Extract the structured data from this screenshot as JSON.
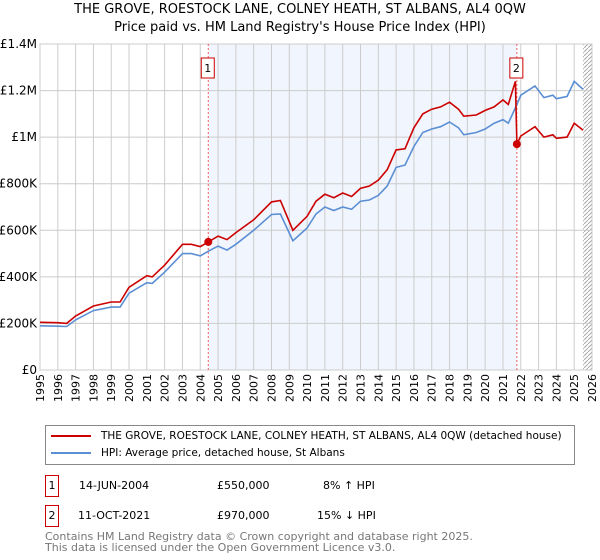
{
  "title": "THE GROVE, ROESTOCK LANE, COLNEY HEATH, ST ALBANS, AL4 0QW",
  "subtitle": "Price paid vs. HM Land Registry's House Price Index (HPI)",
  "chart_data": {
    "type": "line",
    "xlim": [
      1995,
      2026
    ],
    "ylim": [
      0,
      1400000
    ],
    "yticks": [
      {
        "v": 0,
        "label": "£0"
      },
      {
        "v": 200000,
        "label": "£200K"
      },
      {
        "v": 400000,
        "label": "£400K"
      },
      {
        "v": 600000,
        "label": "£600K"
      },
      {
        "v": 800000,
        "label": "£800K"
      },
      {
        "v": 1000000,
        "label": "£1M"
      },
      {
        "v": 1200000,
        "label": "£1.2M"
      },
      {
        "v": 1400000,
        "label": "£1.4M"
      }
    ],
    "xticks": [
      "1995",
      "1996",
      "1997",
      "1998",
      "1999",
      "2000",
      "2001",
      "2002",
      "2003",
      "2004",
      "2005",
      "2006",
      "2007",
      "2008",
      "2009",
      "2010",
      "2011",
      "2012",
      "2013",
      "2014",
      "2015",
      "2016",
      "2017",
      "2018",
      "2019",
      "2020",
      "2021",
      "2022",
      "2023",
      "2024",
      "2025",
      "2026"
    ],
    "shaded_range": [
      2004.45,
      2021.78
    ],
    "hatched_from": 2025.5,
    "series": [
      {
        "name": "THE GROVE, ROESTOCK LANE, COLNEY HEATH, ST ALBANS, AL4 0QW (detached house)",
        "color": "#cc0000",
        "x": [
          1995,
          1996,
          1996.5,
          1997,
          1998,
          1999,
          1999.5,
          2000,
          2001,
          2001.3,
          2002,
          2003,
          2003.5,
          2004,
          2004.45,
          2005,
          2005.5,
          2006,
          2007,
          2008,
          2008.5,
          2009.2,
          2010,
          2010.5,
          2011,
          2011.5,
          2012,
          2012.5,
          2013,
          2013.5,
          2014,
          2014.5,
          2015,
          2015.5,
          2016,
          2016.5,
          2017,
          2017.5,
          2018,
          2018.5,
          2018.8,
          2019.5,
          2020,
          2020.5,
          2021,
          2021.3,
          2021.7,
          2021.78,
          2022,
          2022.8,
          2023.3,
          2023.8,
          2024,
          2024.6,
          2025,
          2025.5
        ],
        "y": [
          205000,
          203000,
          200000,
          232000,
          275000,
          292000,
          292000,
          355000,
          405000,
          400000,
          450000,
          540000,
          540000,
          530000,
          550000,
          575000,
          560000,
          590000,
          645000,
          722000,
          728000,
          600000,
          660000,
          725000,
          755000,
          740000,
          760000,
          745000,
          780000,
          790000,
          815000,
          860000,
          945000,
          950000,
          1040000,
          1100000,
          1120000,
          1130000,
          1150000,
          1120000,
          1090000,
          1095000,
          1115000,
          1130000,
          1160000,
          1140000,
          1240000,
          970000,
          1005000,
          1045000,
          1000000,
          1010000,
          995000,
          1000000,
          1060000,
          1030000
        ]
      },
      {
        "name": "HPI: Average price, detached house, St Albans",
        "color": "#5b8fd4",
        "x": [
          1995,
          1996,
          1996.5,
          1997,
          1998,
          1999,
          1999.5,
          2000,
          2001,
          2001.3,
          2002,
          2003,
          2003.5,
          2004,
          2004.45,
          2005,
          2005.5,
          2006,
          2007,
          2008,
          2008.5,
          2009.2,
          2010,
          2010.5,
          2011,
          2011.5,
          2012,
          2012.5,
          2013,
          2013.5,
          2014,
          2014.5,
          2015,
          2015.5,
          2016,
          2016.5,
          2017,
          2017.5,
          2018,
          2018.5,
          2018.8,
          2019.5,
          2020,
          2020.5,
          2021,
          2021.3,
          2021.78,
          2022,
          2022.8,
          2023.3,
          2023.8,
          2024,
          2024.6,
          2025,
          2025.5
        ],
        "y": [
          190000,
          188000,
          187000,
          215000,
          255000,
          270000,
          270000,
          330000,
          375000,
          372000,
          420000,
          500000,
          500000,
          490000,
          510000,
          532000,
          515000,
          540000,
          600000,
          668000,
          670000,
          555000,
          610000,
          670000,
          700000,
          685000,
          700000,
          690000,
          725000,
          730000,
          750000,
          790000,
          870000,
          880000,
          960000,
          1020000,
          1035000,
          1045000,
          1065000,
          1040000,
          1010000,
          1020000,
          1035000,
          1060000,
          1075000,
          1060000,
          1140000,
          1180000,
          1220000,
          1170000,
          1180000,
          1165000,
          1175000,
          1240000,
          1205000
        ]
      }
    ],
    "annotations": [
      {
        "label": "1",
        "x": 2004.45,
        "y": 550000
      },
      {
        "label": "2",
        "x": 2021.78,
        "y": 970000
      }
    ]
  },
  "legend": [
    {
      "label": "THE GROVE, ROESTOCK LANE, COLNEY HEATH, ST ALBANS, AL4 0QW (detached house)",
      "color": "#cc0000"
    },
    {
      "label": "HPI: Average price, detached house, St Albans",
      "color": "#5b8fd4"
    }
  ],
  "sales": [
    {
      "num": "1",
      "date": "14-JUN-2004",
      "price": "£550,000",
      "hpi": "8% ↑ HPI"
    },
    {
      "num": "2",
      "date": "11-OCT-2021",
      "price": "£970,000",
      "hpi": "15% ↓ HPI"
    }
  ],
  "footer": [
    "Contains HM Land Registry data © Crown copyright and database right 2025.",
    "This data is licensed under the Open Government Licence v3.0."
  ]
}
